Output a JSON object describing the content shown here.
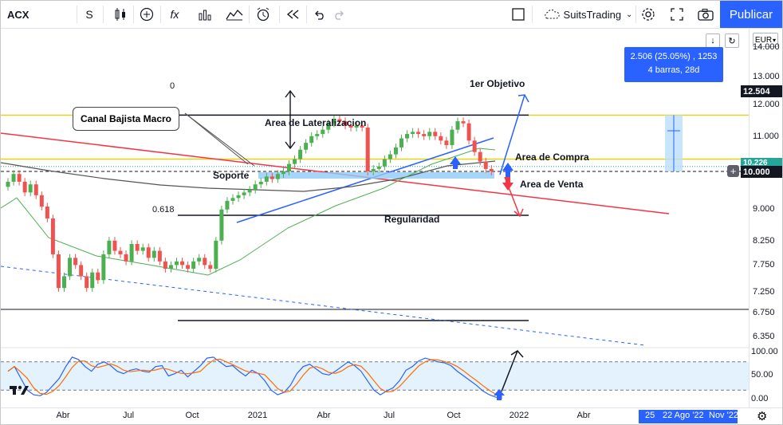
{
  "toolbar": {
    "symbol": "ACX",
    "interval": "S",
    "indicators_label": "fx",
    "account": "SuitsTrading",
    "publish": "Publicar"
  },
  "price_scale": {
    "currency": "EUR",
    "ticks": [
      "14.000",
      "13.000",
      "12.000",
      "11.000",
      "10.000",
      "9.000",
      "8.250",
      "7.750",
      "7.250",
      "6.750",
      "6.350"
    ],
    "osc_ticks": [
      "100.00",
      "50.00",
      "0.00"
    ],
    "tags": {
      "level_12504": "12.504",
      "level_10226": "10.226",
      "last": "10.000"
    }
  },
  "time_axis": {
    "labels": [
      "Abr",
      "Jul",
      "Oct",
      "2021",
      "Abr",
      "Jul",
      "Oct",
      "2022",
      "Abr"
    ],
    "crosshair_labels": [
      "25",
      "22 Ago '22",
      "Nov '22"
    ]
  },
  "measure": {
    "line1": "2.506 (25.05%) , 1253",
    "line2": "4 barras, 28d"
  },
  "annotations": {
    "fib_zero": "0",
    "fib_618": "0.618",
    "first_target": "1er Objetivo",
    "lateral_area": "Area de Lateralizacion",
    "channel": "Canal Bajista Macro",
    "support": "Soporte",
    "buy_area": "Area de Compra",
    "sell_area": "Area de Venta",
    "regularity": "Regularidad"
  },
  "chart_data": {
    "type": "candlestick",
    "symbol": "ACX",
    "interval": "weekly",
    "currency": "EUR",
    "ylim": [
      6.1,
      14.3
    ],
    "y_scale": "log",
    "x_labels": [
      "Abr",
      "Jul",
      "Oct",
      "2021",
      "Abr",
      "Jul",
      "Oct",
      "2022",
      "Abr"
    ],
    "close": [
      9.6,
      9.9,
      9.6,
      9.2,
      9.5,
      9.1,
      8.7,
      8.3,
      7.2,
      6.3,
      6.6,
      7.1,
      6.9,
      6.6,
      6.3,
      6.7,
      6.5,
      7.2,
      7.6,
      7.3,
      7.2,
      7.0,
      7.5,
      7.3,
      7.4,
      7.1,
      7.3,
      7.0,
      6.8,
      6.9,
      7.0,
      6.9,
      6.8,
      7.0,
      7.1,
      6.9,
      6.8,
      7.6,
      8.6,
      8.9,
      9.0,
      9.1,
      9.2,
      9.3,
      9.5,
      9.6,
      9.8,
      9.7,
      9.9,
      10.0,
      10.3,
      10.5,
      10.9,
      11.2,
      11.5,
      11.6,
      11.8,
      12.1,
      12.3,
      12.2,
      12.0,
      11.9,
      12.0,
      11.9,
      10.0,
      10.1,
      10.2,
      10.5,
      10.7,
      11.0,
      11.4,
      11.6,
      11.7,
      11.6,
      11.5,
      11.7,
      11.5,
      11.3,
      11.1,
      11.8,
      12.2,
      12.1,
      11.3,
      10.8,
      10.4,
      10.1,
      10.0
    ],
    "sma_ticks": "green-and-black moving averages",
    "levels": [
      {
        "name": "fib_0",
        "value": 12.5
      },
      {
        "name": "fib_0.618",
        "value": 8.85
      },
      {
        "name": "yellow_upper",
        "value": 12.5
      },
      {
        "name": "yellow_lower",
        "value": 10.5
      },
      {
        "name": "support_dashed",
        "value": 10.0
      },
      {
        "name": "low_line",
        "value": 6.85
      }
    ],
    "oscillator": {
      "type": "stochastic",
      "ylim": [
        0,
        100
      ],
      "levels": [
        80,
        20
      ]
    }
  }
}
